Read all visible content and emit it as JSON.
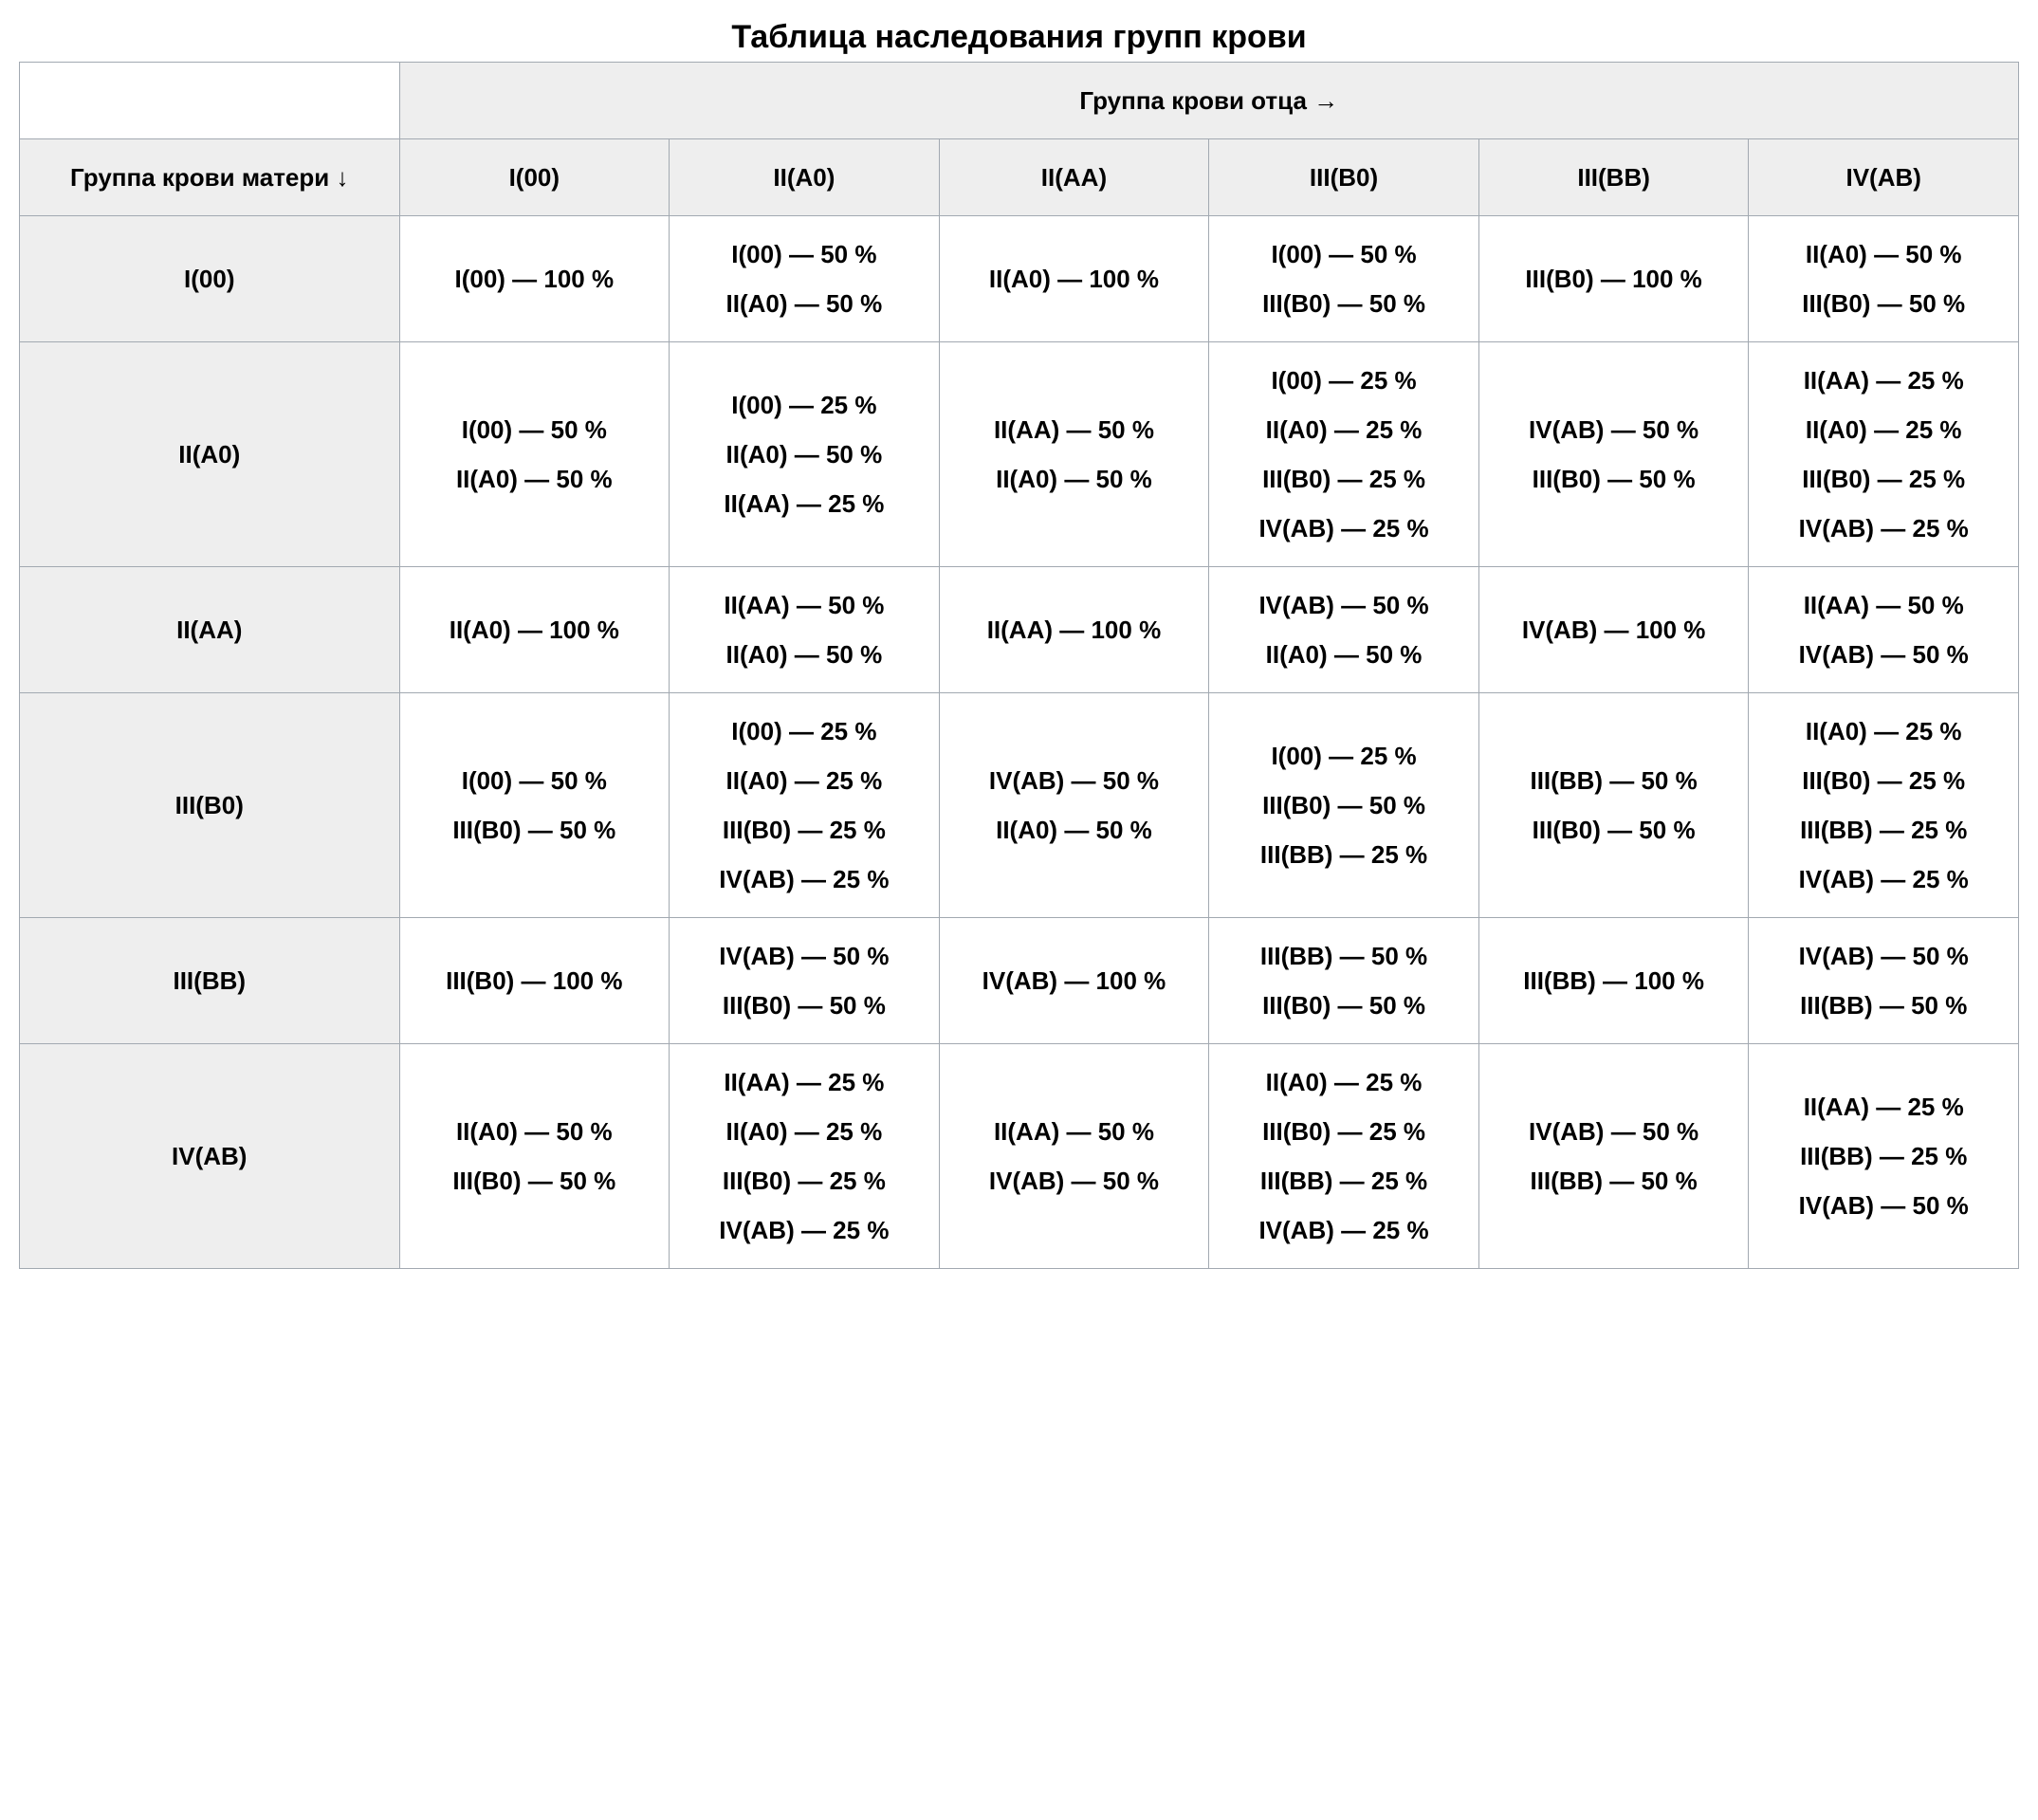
{
  "caption": "Таблица наследования групп крови",
  "header_father": "Группа крови отца →",
  "header_mother": "Группа крови матери ↓",
  "father_cols": [
    "I(00)",
    "II(A0)",
    "II(AA)",
    "III(B0)",
    "III(BB)",
    "IV(AB)"
  ],
  "mother_rows": [
    "I(00)",
    "II(A0)",
    "II(AA)",
    "III(B0)",
    "III(BB)",
    "IV(AB)"
  ],
  "cells": [
    [
      [
        [
          "I(00)",
          "100 %"
        ]
      ],
      [
        [
          "I(00)",
          "50 %"
        ],
        [
          "II(A0)",
          "50 %"
        ]
      ],
      [
        [
          "II(A0)",
          "100 %"
        ]
      ],
      [
        [
          "I(00)",
          "50 %"
        ],
        [
          "III(B0)",
          "50 %"
        ]
      ],
      [
        [
          "III(B0)",
          "100 %"
        ]
      ],
      [
        [
          "II(A0)",
          "50 %"
        ],
        [
          "III(B0)",
          "50 %"
        ]
      ]
    ],
    [
      [
        [
          "I(00)",
          "50 %"
        ],
        [
          "II(A0)",
          "50 %"
        ]
      ],
      [
        [
          "I(00)",
          "25 %"
        ],
        [
          "II(A0)",
          "50 %"
        ],
        [
          "II(AA)",
          "25 %"
        ]
      ],
      [
        [
          "II(AA)",
          "50 %"
        ],
        [
          "II(A0)",
          "50 %"
        ]
      ],
      [
        [
          "I(00)",
          "25 %"
        ],
        [
          "II(A0)",
          "25 %"
        ],
        [
          "III(B0)",
          "25 %"
        ],
        [
          "IV(AB)",
          "25 %"
        ]
      ],
      [
        [
          "IV(AB)",
          "50 %"
        ],
        [
          "III(B0)",
          "50 %"
        ]
      ],
      [
        [
          "II(AA)",
          "25 %"
        ],
        [
          "II(A0)",
          "25 %"
        ],
        [
          "III(B0)",
          "25 %"
        ],
        [
          "IV(AB)",
          "25 %"
        ]
      ]
    ],
    [
      [
        [
          "II(A0)",
          "100 %"
        ]
      ],
      [
        [
          "II(AA)",
          "50 %"
        ],
        [
          "II(A0)",
          "50 %"
        ]
      ],
      [
        [
          "II(AA)",
          "100 %"
        ]
      ],
      [
        [
          "IV(AB)",
          "50 %"
        ],
        [
          "II(A0)",
          "50 %"
        ]
      ],
      [
        [
          "IV(AB)",
          "100 %"
        ]
      ],
      [
        [
          "II(AA)",
          "50 %"
        ],
        [
          "IV(AB)",
          "50 %"
        ]
      ]
    ],
    [
      [
        [
          "I(00)",
          "50 %"
        ],
        [
          "III(B0)",
          "50 %"
        ]
      ],
      [
        [
          "I(00)",
          "25 %"
        ],
        [
          "II(A0)",
          "25 %"
        ],
        [
          "III(B0)",
          "25 %"
        ],
        [
          "IV(AB)",
          "25 %"
        ]
      ],
      [
        [
          "IV(AB)",
          "50 %"
        ],
        [
          "II(A0)",
          "50 %"
        ]
      ],
      [
        [
          "I(00)",
          "25 %"
        ],
        [
          "III(B0)",
          "50 %"
        ],
        [
          "III(BB)",
          "25 %"
        ]
      ],
      [
        [
          "III(BB)",
          "50 %"
        ],
        [
          "III(B0)",
          "50 %"
        ]
      ],
      [
        [
          "II(A0)",
          "25 %"
        ],
        [
          "III(B0)",
          "25 %"
        ],
        [
          "III(BB)",
          "25 %"
        ],
        [
          "IV(AB)",
          "25 %"
        ]
      ]
    ],
    [
      [
        [
          "III(B0)",
          "100 %"
        ]
      ],
      [
        [
          "IV(AB)",
          "50 %"
        ],
        [
          "III(B0)",
          "50 %"
        ]
      ],
      [
        [
          "IV(AB)",
          "100 %"
        ]
      ],
      [
        [
          "III(BB)",
          "50 %"
        ],
        [
          "III(B0)",
          "50 %"
        ]
      ],
      [
        [
          "III(BB)",
          "100 %"
        ]
      ],
      [
        [
          "IV(AB)",
          "50 %"
        ],
        [
          "III(BB)",
          "50 %"
        ]
      ]
    ],
    [
      [
        [
          "II(A0)",
          "50 %"
        ],
        [
          "III(B0)",
          "50 %"
        ]
      ],
      [
        [
          "II(AA)",
          "25 %"
        ],
        [
          "II(A0)",
          "25 %"
        ],
        [
          "III(B0)",
          "25 %"
        ],
        [
          "IV(AB)",
          "25 %"
        ]
      ],
      [
        [
          "II(AA)",
          "50 %"
        ],
        [
          "IV(AB)",
          "50 %"
        ]
      ],
      [
        [
          "II(A0)",
          "25 %"
        ],
        [
          "III(B0)",
          "25 %"
        ],
        [
          "III(BB)",
          "25 %"
        ],
        [
          "IV(AB)",
          "25 %"
        ]
      ],
      [
        [
          "IV(AB)",
          "50 %"
        ],
        [
          "III(BB)",
          "50 %"
        ]
      ],
      [
        [
          "II(AA)",
          "25 %"
        ],
        [
          "III(BB)",
          "25 %"
        ],
        [
          "IV(AB)",
          "50 %"
        ]
      ]
    ]
  ],
  "separator": " — "
}
